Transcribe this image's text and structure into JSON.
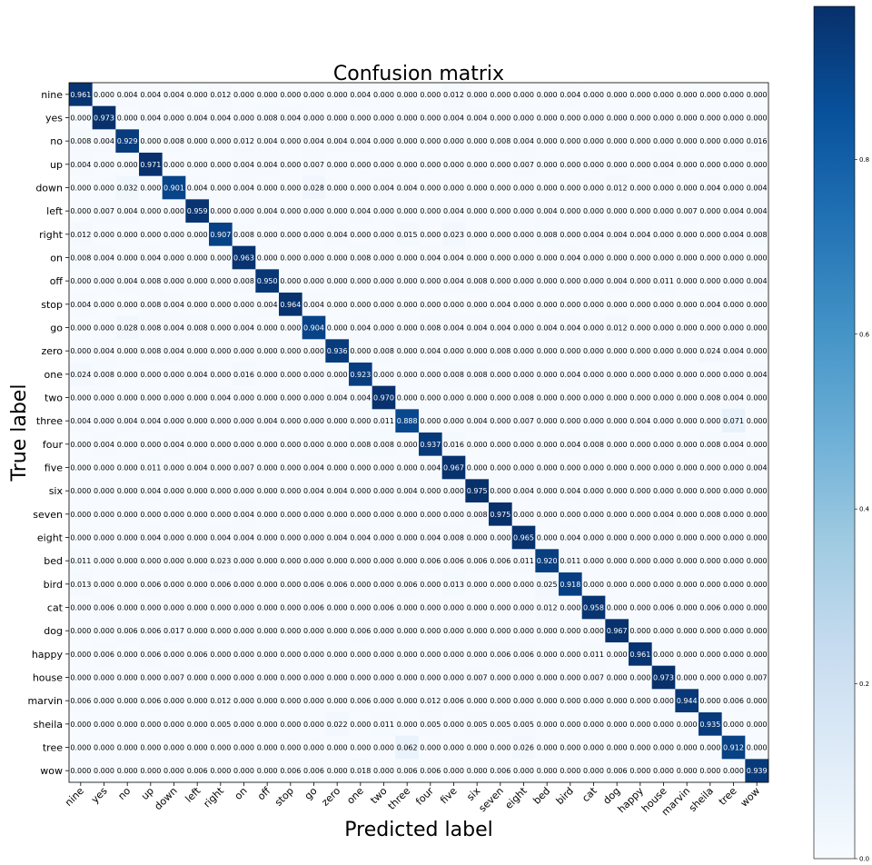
{
  "chart_data": {
    "type": "heatmap",
    "title": "Confusion matrix",
    "xlabel": "Predicted label",
    "ylabel": "True label",
    "labels": [
      "nine",
      "yes",
      "no",
      "up",
      "down",
      "left",
      "right",
      "on",
      "off",
      "stop",
      "go",
      "zero",
      "one",
      "two",
      "three",
      "four",
      "five",
      "six",
      "seven",
      "eight",
      "bed",
      "bird",
      "cat",
      "dog",
      "happy",
      "house",
      "marvin",
      "sheila",
      "tree",
      "wow"
    ],
    "matrix": [
      [
        0.961,
        0.0,
        0.004,
        0.004,
        0.004,
        0.0,
        0.012,
        0.0,
        0.0,
        0.0,
        0.0,
        0.0,
        0.004,
        0.0,
        0.0,
        0.0,
        0.012,
        0.0,
        0.0,
        0.0,
        0.0,
        0.004,
        0.0,
        0.0,
        0.0,
        0.0,
        0.0,
        0.0,
        0.0,
        0.0
      ],
      [
        0.0,
        0.973,
        0.0,
        0.004,
        0.0,
        0.004,
        0.004,
        0.0,
        0.008,
        0.004,
        0.0,
        0.0,
        0.0,
        0.0,
        0.0,
        0.0,
        0.004,
        0.004,
        0.0,
        0.0,
        0.0,
        0.0,
        0.0,
        0.0,
        0.0,
        0.0,
        0.0,
        0.0,
        0.0,
        0.0
      ],
      [
        0.008,
        0.004,
        0.929,
        0.0,
        0.008,
        0.0,
        0.0,
        0.012,
        0.004,
        0.0,
        0.004,
        0.004,
        0.004,
        0.0,
        0.0,
        0.0,
        0.0,
        0.0,
        0.008,
        0.004,
        0.0,
        0.0,
        0.0,
        0.0,
        0.0,
        0.0,
        0.0,
        0.0,
        0.0,
        0.016
      ],
      [
        0.004,
        0.0,
        0.0,
        0.971,
        0.0,
        0.0,
        0.0,
        0.004,
        0.004,
        0.0,
        0.007,
        0.0,
        0.0,
        0.0,
        0.0,
        0.0,
        0.0,
        0.0,
        0.0,
        0.007,
        0.0,
        0.0,
        0.0,
        0.0,
        0.0,
        0.004,
        0.0,
        0.0,
        0.0,
        0.0
      ],
      [
        0.0,
        0.0,
        0.032,
        0.0,
        0.901,
        0.004,
        0.0,
        0.004,
        0.0,
        0.0,
        0.028,
        0.0,
        0.0,
        0.004,
        0.004,
        0.0,
        0.0,
        0.0,
        0.0,
        0.0,
        0.0,
        0.0,
        0.0,
        0.012,
        0.0,
        0.0,
        0.0,
        0.004,
        0.0,
        0.004
      ],
      [
        0.0,
        0.007,
        0.004,
        0.0,
        0.0,
        0.959,
        0.0,
        0.0,
        0.004,
        0.0,
        0.0,
        0.0,
        0.004,
        0.0,
        0.0,
        0.0,
        0.004,
        0.0,
        0.0,
        0.0,
        0.004,
        0.0,
        0.0,
        0.0,
        0.0,
        0.0,
        0.007,
        0.0,
        0.004,
        0.004
      ],
      [
        0.012,
        0.0,
        0.0,
        0.0,
        0.0,
        0.0,
        0.907,
        0.008,
        0.0,
        0.0,
        0.0,
        0.004,
        0.0,
        0.0,
        0.015,
        0.0,
        0.023,
        0.0,
        0.0,
        0.0,
        0.008,
        0.0,
        0.004,
        0.004,
        0.004,
        0.0,
        0.0,
        0.0,
        0.004,
        0.008
      ],
      [
        0.008,
        0.004,
        0.0,
        0.004,
        0.0,
        0.0,
        0.0,
        0.963,
        0.0,
        0.0,
        0.0,
        0.0,
        0.008,
        0.0,
        0.0,
        0.004,
        0.004,
        0.0,
        0.0,
        0.0,
        0.0,
        0.004,
        0.0,
        0.0,
        0.0,
        0.0,
        0.0,
        0.0,
        0.0,
        0.0
      ],
      [
        0.0,
        0.0,
        0.004,
        0.008,
        0.0,
        0.0,
        0.0,
        0.008,
        0.95,
        0.0,
        0.0,
        0.0,
        0.0,
        0.0,
        0.0,
        0.0,
        0.004,
        0.008,
        0.0,
        0.0,
        0.0,
        0.0,
        0.0,
        0.004,
        0.0,
        0.011,
        0.0,
        0.0,
        0.0,
        0.004
      ],
      [
        0.004,
        0.0,
        0.0,
        0.008,
        0.004,
        0.0,
        0.0,
        0.0,
        0.004,
        0.964,
        0.004,
        0.0,
        0.0,
        0.0,
        0.0,
        0.0,
        0.0,
        0.0,
        0.004,
        0.0,
        0.0,
        0.0,
        0.0,
        0.0,
        0.0,
        0.0,
        0.0,
        0.004,
        0.0,
        0.0
      ],
      [
        0.0,
        0.0,
        0.028,
        0.008,
        0.004,
        0.008,
        0.0,
        0.004,
        0.0,
        0.0,
        0.904,
        0.0,
        0.004,
        0.0,
        0.0,
        0.008,
        0.004,
        0.004,
        0.004,
        0.0,
        0.004,
        0.004,
        0.0,
        0.012,
        0.0,
        0.0,
        0.0,
        0.0,
        0.0,
        0.0
      ],
      [
        0.0,
        0.004,
        0.0,
        0.008,
        0.004,
        0.0,
        0.0,
        0.0,
        0.0,
        0.0,
        0.0,
        0.936,
        0.0,
        0.008,
        0.0,
        0.004,
        0.0,
        0.0,
        0.008,
        0.0,
        0.0,
        0.0,
        0.0,
        0.0,
        0.0,
        0.0,
        0.0,
        0.024,
        0.004,
        0.0
      ],
      [
        0.024,
        0.008,
        0.0,
        0.0,
        0.0,
        0.004,
        0.0,
        0.016,
        0.0,
        0.0,
        0.0,
        0.0,
        0.923,
        0.0,
        0.0,
        0.0,
        0.008,
        0.008,
        0.0,
        0.0,
        0.0,
        0.004,
        0.0,
        0.0,
        0.0,
        0.0,
        0.0,
        0.0,
        0.0,
        0.004
      ],
      [
        0.0,
        0.0,
        0.0,
        0.0,
        0.0,
        0.0,
        0.004,
        0.0,
        0.0,
        0.0,
        0.0,
        0.004,
        0.004,
        0.97,
        0.0,
        0.0,
        0.0,
        0.0,
        0.0,
        0.008,
        0.0,
        0.0,
        0.0,
        0.0,
        0.0,
        0.0,
        0.0,
        0.008,
        0.004,
        0.0
      ],
      [
        0.004,
        0.0,
        0.004,
        0.004,
        0.0,
        0.0,
        0.0,
        0.0,
        0.004,
        0.0,
        0.0,
        0.0,
        0.0,
        0.011,
        0.888,
        0.0,
        0.0,
        0.004,
        0.0,
        0.007,
        0.0,
        0.0,
        0.0,
        0.0,
        0.004,
        0.0,
        0.0,
        0.0,
        0.071,
        0.0
      ],
      [
        0.0,
        0.004,
        0.0,
        0.0,
        0.004,
        0.0,
        0.0,
        0.0,
        0.0,
        0.0,
        0.0,
        0.0,
        0.008,
        0.008,
        0.0,
        0.937,
        0.016,
        0.0,
        0.0,
        0.0,
        0.0,
        0.004,
        0.008,
        0.0,
        0.0,
        0.0,
        0.0,
        0.008,
        0.004,
        0.0
      ],
      [
        0.0,
        0.0,
        0.0,
        0.011,
        0.0,
        0.004,
        0.0,
        0.007,
        0.0,
        0.0,
        0.004,
        0.0,
        0.0,
        0.0,
        0.0,
        0.004,
        0.967,
        0.0,
        0.0,
        0.0,
        0.0,
        0.0,
        0.0,
        0.0,
        0.0,
        0.0,
        0.0,
        0.0,
        0.0,
        0.004
      ],
      [
        0.0,
        0.0,
        0.0,
        0.004,
        0.0,
        0.0,
        0.0,
        0.0,
        0.0,
        0.0,
        0.004,
        0.004,
        0.0,
        0.0,
        0.004,
        0.0,
        0.0,
        0.975,
        0.0,
        0.004,
        0.0,
        0.004,
        0.0,
        0.0,
        0.0,
        0.0,
        0.0,
        0.0,
        0.0,
        0.0
      ],
      [
        0.0,
        0.0,
        0.0,
        0.0,
        0.0,
        0.0,
        0.0,
        0.004,
        0.0,
        0.0,
        0.0,
        0.0,
        0.0,
        0.0,
        0.0,
        0.0,
        0.0,
        0.008,
        0.975,
        0.0,
        0.0,
        0.0,
        0.0,
        0.0,
        0.0,
        0.004,
        0.0,
        0.008,
        0.0,
        0.0
      ],
      [
        0.0,
        0.0,
        0.0,
        0.004,
        0.0,
        0.0,
        0.004,
        0.004,
        0.0,
        0.0,
        0.0,
        0.004,
        0.004,
        0.0,
        0.0,
        0.004,
        0.008,
        0.0,
        0.0,
        0.965,
        0.0,
        0.004,
        0.0,
        0.0,
        0.0,
        0.0,
        0.0,
        0.0,
        0.0,
        0.0
      ],
      [
        0.011,
        0.0,
        0.0,
        0.0,
        0.0,
        0.0,
        0.023,
        0.0,
        0.0,
        0.0,
        0.0,
        0.0,
        0.0,
        0.0,
        0.0,
        0.006,
        0.006,
        0.006,
        0.006,
        0.011,
        0.92,
        0.011,
        0.0,
        0.0,
        0.0,
        0.0,
        0.0,
        0.0,
        0.0,
        0.0
      ],
      [
        0.013,
        0.0,
        0.0,
        0.006,
        0.0,
        0.0,
        0.006,
        0.0,
        0.0,
        0.0,
        0.006,
        0.006,
        0.0,
        0.0,
        0.006,
        0.0,
        0.013,
        0.0,
        0.0,
        0.0,
        0.025,
        0.918,
        0.0,
        0.0,
        0.0,
        0.0,
        0.0,
        0.0,
        0.0,
        0.0
      ],
      [
        0.0,
        0.006,
        0.0,
        0.0,
        0.0,
        0.0,
        0.0,
        0.0,
        0.0,
        0.0,
        0.006,
        0.0,
        0.0,
        0.006,
        0.0,
        0.0,
        0.0,
        0.0,
        0.0,
        0.0,
        0.012,
        0.0,
        0.958,
        0.0,
        0.0,
        0.006,
        0.0,
        0.006,
        0.0,
        0.0
      ],
      [
        0.0,
        0.0,
        0.006,
        0.006,
        0.017,
        0.0,
        0.0,
        0.0,
        0.0,
        0.0,
        0.0,
        0.0,
        0.006,
        0.0,
        0.0,
        0.0,
        0.0,
        0.0,
        0.0,
        0.0,
        0.0,
        0.0,
        0.0,
        0.967,
        0.0,
        0.0,
        0.0,
        0.0,
        0.0,
        0.0
      ],
      [
        0.0,
        0.006,
        0.0,
        0.006,
        0.0,
        0.006,
        0.0,
        0.0,
        0.0,
        0.0,
        0.0,
        0.0,
        0.0,
        0.0,
        0.0,
        0.0,
        0.0,
        0.0,
        0.006,
        0.006,
        0.0,
        0.0,
        0.011,
        0.0,
        0.961,
        0.0,
        0.0,
        0.0,
        0.0,
        0.0
      ],
      [
        0.0,
        0.0,
        0.0,
        0.0,
        0.007,
        0.0,
        0.0,
        0.0,
        0.0,
        0.0,
        0.0,
        0.0,
        0.0,
        0.0,
        0.0,
        0.0,
        0.0,
        0.007,
        0.0,
        0.0,
        0.0,
        0.0,
        0.007,
        0.0,
        0.0,
        0.973,
        0.0,
        0.0,
        0.0,
        0.007
      ],
      [
        0.006,
        0.0,
        0.0,
        0.006,
        0.0,
        0.0,
        0.012,
        0.0,
        0.0,
        0.0,
        0.0,
        0.0,
        0.006,
        0.0,
        0.0,
        0.012,
        0.006,
        0.0,
        0.0,
        0.0,
        0.0,
        0.0,
        0.0,
        0.0,
        0.0,
        0.0,
        0.944,
        0.0,
        0.006,
        0.0
      ],
      [
        0.0,
        0.0,
        0.0,
        0.0,
        0.0,
        0.0,
        0.005,
        0.0,
        0.0,
        0.0,
        0.0,
        0.022,
        0.0,
        0.011,
        0.0,
        0.005,
        0.0,
        0.005,
        0.005,
        0.005,
        0.0,
        0.0,
        0.0,
        0.0,
        0.0,
        0.0,
        0.0,
        0.935,
        0.0,
        0.0
      ],
      [
        0.0,
        0.0,
        0.0,
        0.0,
        0.0,
        0.0,
        0.0,
        0.0,
        0.0,
        0.0,
        0.0,
        0.0,
        0.0,
        0.0,
        0.062,
        0.0,
        0.0,
        0.0,
        0.0,
        0.026,
        0.0,
        0.0,
        0.0,
        0.0,
        0.0,
        0.0,
        0.0,
        0.0,
        0.912,
        0.0
      ],
      [
        0.0,
        0.0,
        0.0,
        0.0,
        0.0,
        0.006,
        0.0,
        0.0,
        0.0,
        0.006,
        0.006,
        0.0,
        0.018,
        0.0,
        0.006,
        0.006,
        0.0,
        0.0,
        0.006,
        0.0,
        0.0,
        0.0,
        0.0,
        0.006,
        0.0,
        0.0,
        0.0,
        0.0,
        0.0,
        0.939
      ]
    ],
    "value_range": [
      0.0,
      1.0
    ],
    "colormap": "Blues",
    "colorbar_ticks": [
      "0.0",
      "0.2",
      "0.4",
      "0.6",
      "0.8"
    ],
    "grid": false,
    "legend": "colorbar-right"
  }
}
